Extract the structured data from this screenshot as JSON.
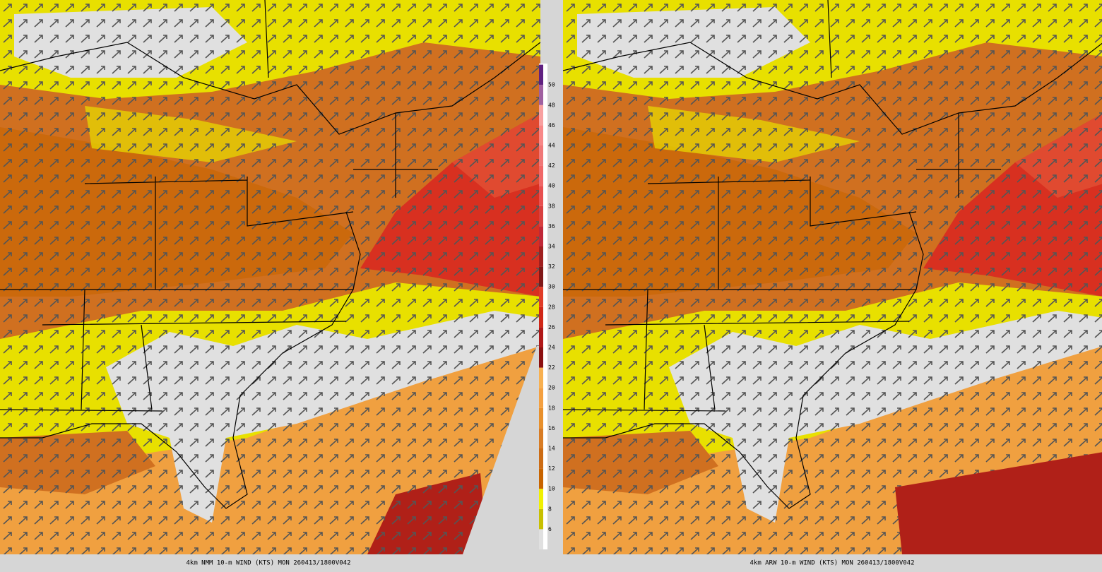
{
  "panels": [
    {
      "caption": "4km NMM 10-m WIND (KTS) MON 260413/1800V042"
    },
    {
      "caption": "4km ARW 10-m WIND (KTS) MON 260413/1800V042"
    }
  ],
  "colorbar": {
    "labels": [
      6,
      8,
      10,
      12,
      14,
      16,
      18,
      20,
      22,
      24,
      26,
      28,
      30,
      32,
      34,
      36,
      38,
      40,
      42,
      44,
      46,
      48,
      50
    ],
    "colors": [
      "#e0e0e0",
      "#c8c000",
      "#f0f000",
      "#c86400",
      "#cc6c14",
      "#d87c24",
      "#e8902c",
      "#f4a040",
      "#f8b050",
      "#8c1010",
      "#b01818",
      "#d02818",
      "#e03c28",
      "#801818",
      "#a02020",
      "#c02838",
      "#d84040",
      "#e85050",
      "#f06868",
      "#f07878",
      "#f88888",
      "#f8a0a0",
      "#a060a0",
      "#602080"
    ]
  }
}
